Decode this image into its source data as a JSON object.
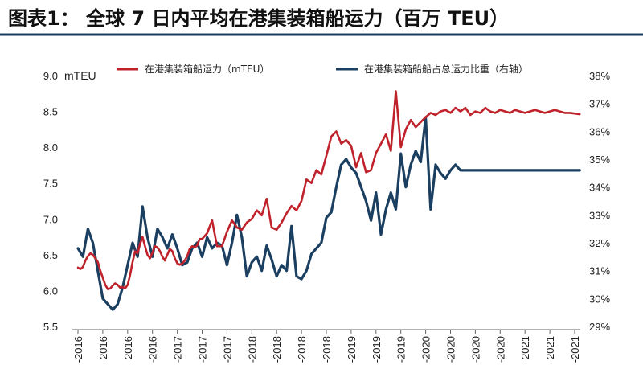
{
  "chart_data": {
    "type": "line",
    "title": "图表1：  全球 7 日内平均在港集装箱船运力（百万 TEU）",
    "ylabel_left_unit": "mTEU",
    "legend_position": "top",
    "grid": false,
    "x_tick_labels": [
      "2016",
      "2016",
      "2016",
      "2016",
      "2017",
      "2017",
      "2017",
      "2018",
      "2018",
      "2018",
      "2018",
      "2019",
      "2019",
      "2019",
      "2020",
      "2020",
      "2020",
      "2020",
      "2021",
      "2021",
      "2021"
    ],
    "y_left": {
      "ticks": [
        "5.5",
        "6.0",
        "6.5",
        "7.0",
        "7.5",
        "8.0",
        "8.5",
        "9.0"
      ],
      "range": [
        5.5,
        9.0
      ]
    },
    "y_right": {
      "ticks": [
        "29%",
        "30%",
        "31%",
        "32%",
        "33%",
        "34%",
        "35%",
        "36%",
        "37%",
        "38%"
      ],
      "range": [
        29,
        38
      ]
    },
    "series": [
      {
        "name": "在港集装箱船运力（mTEU）",
        "color": "#c0222b",
        "axis": "left",
        "x": [
          0.0,
          0.1,
          0.2,
          0.3,
          0.4,
          0.5,
          0.6,
          0.7,
          0.8,
          0.9,
          1.0,
          1.1,
          1.2,
          1.3,
          1.4,
          1.5,
          1.6,
          1.7,
          1.8,
          1.9,
          2.0,
          2.1,
          2.2,
          2.3,
          2.4,
          2.5,
          2.6,
          2.7,
          2.8,
          2.9,
          3.0,
          3.1,
          3.2,
          3.3,
          3.4,
          3.5,
          3.6,
          3.7,
          3.8,
          3.9,
          4.0,
          4.1,
          4.2,
          4.3,
          4.4,
          4.5,
          4.6,
          4.7,
          4.8,
          4.9,
          5.0,
          5.2,
          5.4,
          5.6,
          5.8,
          6.0,
          6.2,
          6.4,
          6.6,
          6.8,
          7.0,
          7.2,
          7.4,
          7.6,
          7.8,
          8.0,
          8.2,
          8.4,
          8.6,
          8.8,
          9.0,
          9.2,
          9.4,
          9.6,
          9.8,
          10.0,
          10.2,
          10.4,
          10.6,
          10.8,
          11.0,
          11.2,
          11.4,
          11.6,
          11.8,
          12.0,
          12.2,
          12.4,
          12.6,
          12.8,
          13.0,
          13.2,
          13.4,
          13.6,
          13.8,
          14.0,
          14.2,
          14.4,
          14.6,
          14.8,
          15.0,
          15.2,
          15.4,
          15.6,
          15.8,
          16.0,
          16.2,
          16.4,
          16.6,
          16.8,
          17.0,
          17.2,
          17.4,
          17.6,
          17.8,
          18.0,
          18.2,
          18.4,
          18.6,
          18.8,
          19.0,
          19.2,
          19.4,
          19.6,
          19.8,
          20.0,
          20.2
        ],
        "values": [
          6.32,
          6.3,
          6.33,
          6.42,
          6.48,
          6.52,
          6.5,
          6.45,
          6.4,
          6.28,
          6.18,
          6.08,
          6.02,
          6.03,
          6.07,
          6.1,
          6.08,
          6.04,
          6.05,
          6.03,
          6.08,
          6.22,
          6.4,
          6.55,
          6.52,
          6.65,
          6.75,
          6.62,
          6.5,
          6.45,
          6.53,
          6.62,
          6.6,
          6.55,
          6.47,
          6.42,
          6.5,
          6.58,
          6.55,
          6.45,
          6.38,
          6.36,
          6.38,
          6.42,
          6.48,
          6.58,
          6.62,
          6.6,
          6.63,
          6.72,
          6.72,
          6.8,
          6.98,
          6.62,
          6.62,
          6.82,
          6.98,
          6.88,
          6.85,
          6.95,
          7.0,
          7.12,
          7.05,
          7.28,
          6.88,
          6.85,
          6.95,
          7.08,
          7.18,
          7.12,
          7.25,
          7.55,
          7.5,
          7.68,
          7.62,
          7.88,
          8.15,
          8.22,
          8.05,
          8.1,
          8.02,
          7.72,
          7.92,
          7.65,
          7.68,
          7.92,
          8.05,
          8.18,
          7.95,
          8.78,
          8.0,
          8.25,
          8.38,
          8.28,
          8.35,
          8.42,
          8.48,
          8.45,
          8.5,
          8.52,
          8.48,
          8.55,
          8.5,
          8.55,
          8.45,
          8.5,
          8.48,
          8.55,
          8.5,
          8.48,
          8.52,
          8.5,
          8.48,
          8.52,
          8.5,
          8.48,
          8.5,
          8.52,
          8.5,
          8.48,
          8.5,
          8.52,
          8.5,
          8.48,
          8.48,
          8.47,
          8.46
        ]
      },
      {
        "name": "在港集装箱船船占总运力比重（右轴）",
        "color": "#1b3f60",
        "axis": "right",
        "x": [
          0.0,
          0.2,
          0.4,
          0.6,
          0.8,
          1.0,
          1.2,
          1.4,
          1.6,
          1.8,
          2.0,
          2.2,
          2.4,
          2.6,
          2.8,
          3.0,
          3.2,
          3.4,
          3.6,
          3.8,
          4.0,
          4.2,
          4.4,
          4.6,
          4.8,
          5.0,
          5.2,
          5.4,
          5.6,
          5.8,
          6.0,
          6.2,
          6.4,
          6.6,
          6.8,
          7.0,
          7.2,
          7.4,
          7.6,
          7.8,
          8.0,
          8.2,
          8.4,
          8.6,
          8.8,
          9.0,
          9.2,
          9.4,
          9.6,
          9.8,
          10.0,
          10.2,
          10.4,
          10.6,
          10.8,
          11.0,
          11.2,
          11.4,
          11.6,
          11.8,
          12.0,
          12.2,
          12.4,
          12.6,
          12.8,
          13.0,
          13.2,
          13.4,
          13.6,
          13.8,
          14.0,
          14.2,
          14.4,
          14.6,
          14.8,
          15.0,
          15.2,
          15.4,
          15.6,
          15.8,
          16.0,
          16.2,
          16.4,
          16.6,
          16.8,
          17.0,
          17.2,
          17.4,
          17.6,
          17.8,
          18.0,
          18.2,
          18.4,
          18.6,
          18.8,
          19.0,
          19.2,
          19.4,
          19.6,
          19.8,
          20.0,
          20.2
        ],
        "values": [
          31.8,
          31.5,
          32.5,
          32.0,
          31.0,
          30.0,
          29.8,
          29.6,
          29.8,
          30.4,
          31.2,
          32.0,
          31.5,
          33.3,
          32.2,
          31.5,
          32.5,
          32.2,
          31.8,
          32.3,
          31.8,
          31.2,
          31.3,
          31.8,
          32.0,
          31.5,
          32.2,
          31.8,
          32.0,
          31.9,
          31.2,
          32.0,
          33.0,
          32.2,
          30.8,
          31.3,
          31.5,
          31.0,
          31.9,
          31.4,
          30.8,
          31.2,
          31.0,
          32.6,
          30.8,
          30.7,
          31.0,
          31.6,
          31.8,
          32.0,
          32.9,
          33.1,
          34.0,
          34.8,
          35.0,
          34.7,
          34.5,
          34.0,
          33.5,
          32.8,
          33.8,
          32.3,
          33.2,
          33.8,
          33.2,
          35.2,
          34.0,
          34.8,
          35.3,
          34.9,
          36.5,
          33.2,
          34.8,
          34.5,
          34.3,
          34.6,
          34.8,
          34.6,
          34.6,
          34.6,
          34.6,
          34.6,
          34.6,
          34.6,
          34.6,
          34.6,
          34.6,
          34.6,
          34.6,
          34.6,
          34.6,
          34.6,
          34.6,
          34.6,
          34.6,
          34.6,
          34.6,
          34.6,
          34.6,
          34.6,
          34.6,
          34.6
        ]
      }
    ]
  }
}
